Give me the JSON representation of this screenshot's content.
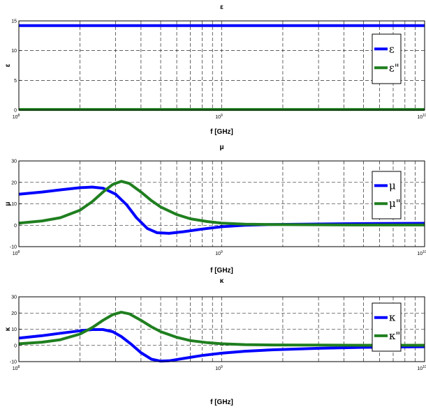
{
  "figure": {
    "background": "#ffffff"
  },
  "chart_data": [
    {
      "type": "line",
      "title": "ε",
      "xlabel": "f [GHz]",
      "ylabel": "ε",
      "x_scale": "log",
      "xlim": [
        0.1,
        10
      ],
      "ylim": [
        0,
        15
      ],
      "yticks": [
        0,
        5,
        10,
        15
      ],
      "xticks": [
        {
          "base": "10",
          "exp": "8"
        },
        {
          "base": "10",
          "exp": "9"
        },
        {
          "base": "10",
          "exp": "10"
        }
      ],
      "grid": true,
      "legend_position": "right",
      "series": [
        {
          "name": "ε",
          "color": "#0000ff",
          "x": [
            0.1,
            1,
            10
          ],
          "y": [
            14.2,
            14.2,
            14.2
          ]
        },
        {
          "name": "ε\"",
          "color": "#1f7f1f",
          "x": [
            0.1,
            1,
            10
          ],
          "y": [
            0.1,
            0.1,
            0.1
          ]
        }
      ]
    },
    {
      "type": "line",
      "title": "μ",
      "xlabel": "f [GHz]",
      "ylabel": "μ",
      "x_scale": "log",
      "xlim": [
        0.1,
        10
      ],
      "ylim": [
        -10,
        30
      ],
      "yticks": [
        -10,
        0,
        10,
        20,
        30
      ],
      "xticks": [
        {
          "base": "10",
          "exp": "8"
        },
        {
          "base": "10",
          "exp": "9"
        },
        {
          "base": "10",
          "exp": "10"
        }
      ],
      "grid": true,
      "legend_position": "right",
      "series": [
        {
          "name": "μ",
          "color": "#0000ff",
          "x": [
            0.1,
            0.13,
            0.16,
            0.2,
            0.23,
            0.26,
            0.3,
            0.34,
            0.38,
            0.43,
            0.48,
            0.55,
            0.65,
            0.8,
            1.0,
            1.3,
            1.7,
            2.5,
            4,
            6,
            10
          ],
          "y": [
            14.5,
            15.5,
            16.5,
            17.5,
            17.8,
            17.3,
            14.5,
            9.5,
            3.5,
            -1.5,
            -3.5,
            -3.8,
            -3.0,
            -1.8,
            -0.7,
            0.0,
            0.3,
            0.5,
            0.7,
            0.8,
            0.9
          ]
        },
        {
          "name": "μ\"",
          "color": "#1f7f1f",
          "x": [
            0.1,
            0.13,
            0.16,
            0.2,
            0.23,
            0.26,
            0.29,
            0.32,
            0.35,
            0.4,
            0.45,
            0.5,
            0.6,
            0.7,
            0.85,
            1.0,
            1.3,
            1.8,
            3,
            5,
            10
          ],
          "y": [
            1.0,
            2.0,
            3.5,
            7.0,
            11.0,
            15.5,
            19.0,
            20.5,
            19.5,
            15.5,
            11.5,
            8.5,
            5.0,
            3.0,
            1.7,
            1.0,
            0.5,
            0.3,
            0.2,
            0.1,
            0.1
          ]
        }
      ]
    },
    {
      "type": "line",
      "title": "κ",
      "xlabel": "f [GHz]",
      "ylabel": "κ",
      "x_scale": "log",
      "xlim": [
        0.1,
        10
      ],
      "ylim": [
        -10,
        30
      ],
      "yticks": [
        -10,
        0,
        10,
        20,
        30
      ],
      "xticks": [
        {
          "base": "10",
          "exp": "8"
        },
        {
          "base": "10",
          "exp": "9"
        },
        {
          "base": "10",
          "exp": "10"
        }
      ],
      "grid": true,
      "legend_position": "right",
      "series": [
        {
          "name": "κ",
          "color": "#0000ff",
          "x": [
            0.1,
            0.13,
            0.16,
            0.2,
            0.23,
            0.26,
            0.29,
            0.32,
            0.36,
            0.4,
            0.45,
            0.5,
            0.55,
            0.65,
            0.8,
            1.0,
            1.3,
            1.8,
            3,
            5,
            10
          ],
          "y": [
            4.5,
            6.0,
            7.5,
            9.0,
            9.8,
            9.8,
            8.5,
            5.5,
            0.5,
            -4.5,
            -8.5,
            -9.7,
            -9.5,
            -8.0,
            -6.2,
            -4.8,
            -3.6,
            -2.7,
            -1.8,
            -1.2,
            -0.8
          ]
        },
        {
          "name": "κ\"",
          "color": "#1f7f1f",
          "x": [
            0.1,
            0.13,
            0.16,
            0.2,
            0.23,
            0.26,
            0.29,
            0.32,
            0.35,
            0.4,
            0.45,
            0.5,
            0.6,
            0.7,
            0.85,
            1.0,
            1.3,
            1.8,
            3,
            5,
            10
          ],
          "y": [
            1.0,
            2.0,
            3.5,
            7.0,
            11.0,
            15.5,
            19.0,
            20.5,
            19.5,
            15.5,
            11.5,
            8.5,
            5.0,
            3.0,
            1.7,
            1.0,
            0.5,
            0.3,
            0.2,
            0.1,
            0.1
          ]
        }
      ]
    }
  ]
}
